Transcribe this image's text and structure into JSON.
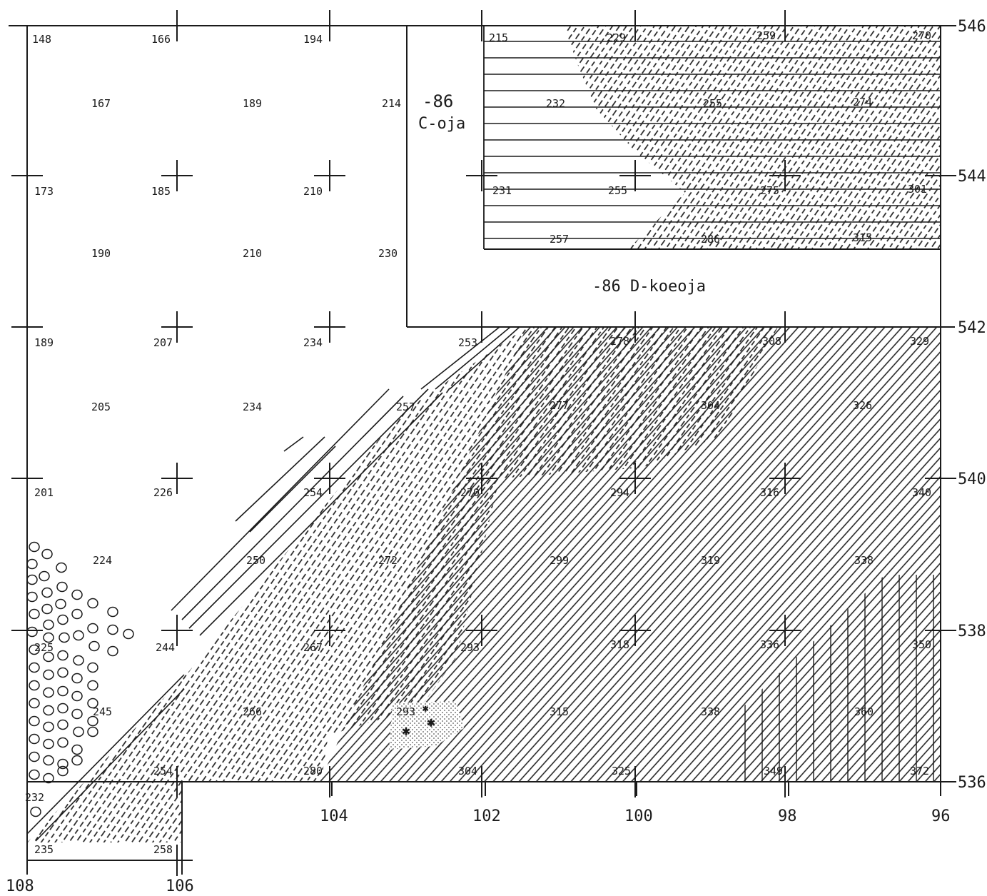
{
  "map": {
    "x_axis": [
      "108",
      "106",
      "104",
      "102",
      "100",
      "98",
      "96"
    ],
    "y_axis": [
      "546",
      "544",
      "542",
      "540",
      "538",
      "536"
    ],
    "annotations": {
      "c_number": "-86",
      "c_name": "C-oja",
      "d_label": "-86 D-koeoja"
    },
    "values": [
      "148",
      "166",
      "194",
      "215",
      "229",
      "259",
      "270",
      "167",
      "189",
      "214",
      "232",
      "255",
      "274",
      "173",
      "185",
      "210",
      "231",
      "255",
      "275",
      "301",
      "190",
      "210",
      "230",
      "257",
      "286",
      "315",
      "189",
      "207",
      "234",
      "253",
      "278",
      "308",
      "329",
      "205",
      "234",
      "257",
      "277",
      "304",
      "326",
      "201",
      "226",
      "254",
      "270",
      "294",
      "316",
      "340",
      "224",
      "250",
      "272",
      "299",
      "319",
      "338",
      "225",
      "244",
      "267",
      "293",
      "318",
      "336",
      "350",
      "245",
      "266",
      "293",
      "315",
      "338",
      "360",
      "232",
      "254",
      "280",
      "304",
      "325",
      "349",
      "372",
      "235",
      "258"
    ]
  }
}
